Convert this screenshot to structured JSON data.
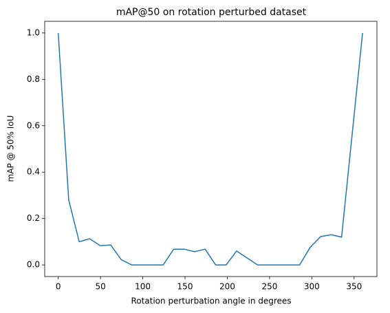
{
  "chart_data": {
    "type": "line",
    "title": "mAP@50 on rotation perturbed dataset",
    "x_label": "Rotation perturbation angle in degrees",
    "y_label": "mAP @ 50% IoU",
    "x": [
      0,
      12.4,
      24.8,
      37.2,
      49.7,
      62.1,
      74.5,
      86.9,
      99.3,
      111.7,
      124.1,
      136.6,
      149,
      161.4,
      173.8,
      186.2,
      198.6,
      211,
      223.4,
      235.9,
      248.3,
      260.7,
      273.1,
      285.5,
      297.9,
      310.3,
      322.8,
      335.2,
      347.6,
      360
    ],
    "series": [
      {
        "color": "#1f77b4",
        "values": [
          1.0,
          0.28,
          0.1,
          0.113,
          0.083,
          0.086,
          0.023,
          0,
          0,
          0,
          0,
          0.068,
          0.068,
          0.057,
          0.068,
          0,
          0,
          0.06,
          0.03,
          0,
          0,
          0,
          0,
          0,
          0.075,
          0.122,
          0.13,
          0.12,
          0.56,
          1.0
        ]
      }
    ],
    "xlim": [
      -16,
      377
    ],
    "ylim": [
      -0.05,
      1.05
    ],
    "xticks": [
      0,
      50,
      100,
      150,
      200,
      250,
      300,
      350
    ],
    "yticks": [
      {
        "value": 0,
        "label": "0.0"
      },
      {
        "value": 0.2,
        "label": "0.2"
      },
      {
        "value": 0.4,
        "label": "0.4"
      },
      {
        "value": 0.6,
        "label": "0.6"
      },
      {
        "value": 0.8,
        "label": "0.8"
      },
      {
        "value": 1.0,
        "label": "1.0"
      }
    ]
  }
}
